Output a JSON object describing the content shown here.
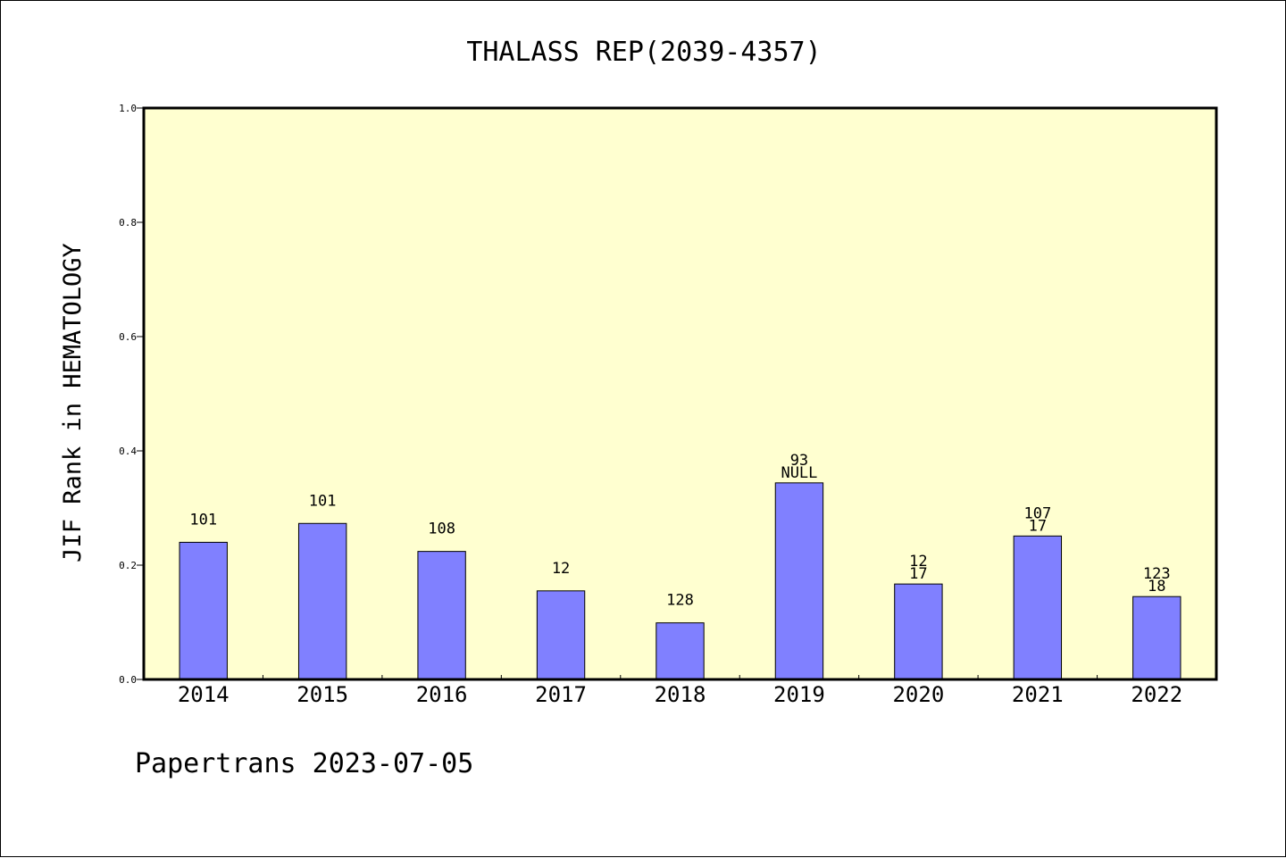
{
  "chart_data": {
    "type": "bar",
    "title": "THALASS REP(2039-4357)",
    "xlabel": "",
    "ylabel": "JIF Rank in HEMATOLOGY",
    "ylim": [
      0,
      1.0
    ],
    "yticks": [
      "0.0",
      "0.2",
      "0.4",
      "0.6",
      "0.8",
      "1.0"
    ],
    "categories": [
      "2014",
      "2015",
      "2016",
      "2017",
      "2018",
      "2019",
      "2020",
      "2021",
      "2022"
    ],
    "values": [
      0.24,
      0.273,
      0.224,
      0.155,
      0.099,
      0.344,
      0.167,
      0.251,
      0.145
    ],
    "labels": [
      [
        "101"
      ],
      [
        "101"
      ],
      [
        "108"
      ],
      [
        "12"
      ],
      [
        "128"
      ],
      [
        "93",
        "NULL"
      ],
      [
        "12",
        "17"
      ],
      [
        "107",
        "17"
      ],
      [
        "123",
        "18"
      ]
    ],
    "grid": false,
    "colors": {
      "plot_background": "#ffffd0",
      "bar": "#8080ff",
      "bar_edge": "#000000"
    }
  },
  "footer": "Papertrans 2023-07-05"
}
